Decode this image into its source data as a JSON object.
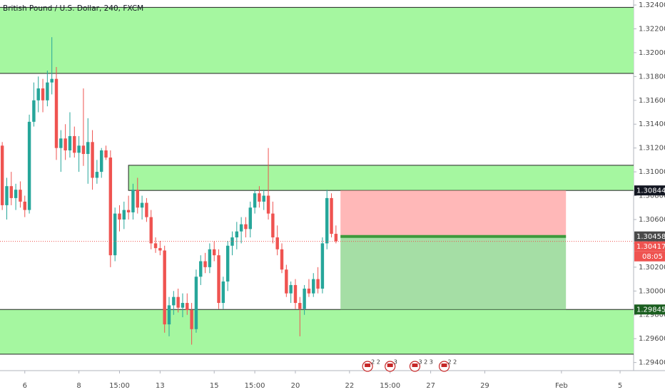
{
  "chart_data": {
    "type": "candlestick",
    "title": "British Pound / U.S. Dollar, 240, FXCM",
    "x": [
      0,
      1,
      2,
      3,
      4,
      5,
      6,
      7,
      8,
      9,
      10,
      11,
      12,
      13,
      14,
      15,
      16,
      17,
      18,
      19,
      20,
      21,
      22,
      23,
      24,
      25,
      26,
      27,
      28,
      29,
      30,
      31,
      32,
      33,
      34,
      35,
      36,
      37,
      38,
      39,
      40,
      41,
      42,
      43,
      44,
      45,
      46,
      47,
      48,
      49,
      50,
      51,
      52,
      53,
      54,
      55,
      56,
      57,
      58,
      59,
      60,
      61,
      62,
      63,
      64,
      65,
      66,
      67,
      68,
      69,
      70,
      71,
      72,
      73,
      74
    ],
    "open": [
      1.3122,
      1.3072,
      1.3088,
      1.3078,
      1.3085,
      1.3075,
      1.3068,
      1.3142,
      1.316,
      1.317,
      1.316,
      1.3175,
      1.3178,
      1.312,
      1.3128,
      1.3118,
      1.313,
      1.3116,
      1.3122,
      1.3115,
      1.3125,
      1.3095,
      1.31,
      1.3118,
      1.3112,
      1.303,
      1.3065,
      1.306,
      1.3068,
      1.3066,
      1.3085,
      1.307,
      1.3074,
      1.3062,
      1.304,
      1.3036,
      1.3034,
      1.2972,
      1.2988,
      1.2995,
      1.2986,
      1.299,
      1.2984,
      1.2968,
      1.3012,
      1.3025,
      1.302,
      1.3035,
      1.303,
      1.299,
      1.3008,
      1.3038,
      1.3045,
      1.305,
      1.3056,
      1.3052,
      1.307,
      1.3082,
      1.3075,
      1.308,
      1.3065,
      1.3045,
      1.3035,
      1.3018,
      1.2998,
      1.3005,
      1.299,
      1.2985,
      1.3002,
      1.2998,
      1.301,
      1.3002,
      1.304,
      1.3078,
      1.3048
    ],
    "high": [
      1.3125,
      1.3095,
      1.31,
      1.309,
      1.3092,
      1.308,
      1.3148,
      1.3175,
      1.318,
      1.3178,
      1.3185,
      1.3213,
      1.3188,
      1.3135,
      1.314,
      1.315,
      1.3138,
      1.313,
      1.317,
      1.3145,
      1.3135,
      1.311,
      1.312,
      1.3122,
      1.3118,
      1.307,
      1.3072,
      1.3075,
      1.308,
      1.309,
      1.3095,
      1.308,
      1.3078,
      1.3068,
      1.3045,
      1.3042,
      1.3038,
      1.2995,
      1.3,
      1.3002,
      1.2998,
      1.2998,
      1.299,
      1.3018,
      1.303,
      1.3032,
      1.304,
      1.3042,
      1.3035,
      1.3012,
      1.3042,
      1.305,
      1.3058,
      1.3062,
      1.3062,
      1.3075,
      1.3085,
      1.3088,
      1.3085,
      1.312,
      1.3075,
      1.3055,
      1.304,
      1.3022,
      1.3008,
      1.301,
      1.2995,
      1.3005,
      1.301,
      1.3015,
      1.302,
      1.3045,
      1.3085,
      1.3082,
      1.3055
    ],
    "low": [
      1.3068,
      1.306,
      1.3072,
      1.3068,
      1.307,
      1.3062,
      1.3065,
      1.3138,
      1.315,
      1.315,
      1.3155,
      1.3165,
      1.311,
      1.31,
      1.311,
      1.3112,
      1.3112,
      1.31,
      1.3105,
      1.309,
      1.3085,
      1.309,
      1.3095,
      1.311,
      1.302,
      1.3025,
      1.305,
      1.3052,
      1.306,
      1.306,
      1.3065,
      1.306,
      1.3058,
      1.3035,
      1.3032,
      1.303,
      1.2965,
      1.2962,
      1.298,
      1.2982,
      1.2978,
      1.298,
      1.2955,
      1.2965,
      1.3005,
      1.3015,
      1.3015,
      1.3025,
      1.2985,
      1.2985,
      1.3,
      1.303,
      1.3035,
      1.304,
      1.3045,
      1.3045,
      1.3065,
      1.307,
      1.3068,
      1.306,
      1.304,
      1.303,
      1.3015,
      1.2995,
      1.299,
      1.2985,
      1.2962,
      1.298,
      1.2995,
      1.2995,
      1.2998,
      1.2998,
      1.3035,
      1.3045,
      1.304
    ],
    "close": [
      1.3072,
      1.3088,
      1.3078,
      1.3085,
      1.3075,
      1.3068,
      1.3142,
      1.316,
      1.317,
      1.316,
      1.3175,
      1.3178,
      1.312,
      1.3128,
      1.3118,
      1.313,
      1.3116,
      1.3122,
      1.3115,
      1.3125,
      1.3095,
      1.31,
      1.3118,
      1.3112,
      1.303,
      1.3065,
      1.306,
      1.3068,
      1.3066,
      1.3085,
      1.307,
      1.3074,
      1.3062,
      1.304,
      1.3036,
      1.3034,
      1.2972,
      1.2988,
      1.2995,
      1.2986,
      1.299,
      1.2984,
      1.2968,
      1.3012,
      1.3025,
      1.302,
      1.3035,
      1.303,
      1.299,
      1.3008,
      1.3038,
      1.3045,
      1.305,
      1.3056,
      1.3052,
      1.307,
      1.3082,
      1.3075,
      1.308,
      1.3065,
      1.3045,
      1.3035,
      1.3018,
      1.2998,
      1.3005,
      1.299,
      1.2985,
      1.3002,
      1.2998,
      1.301,
      1.3002,
      1.304,
      1.3078,
      1.3048,
      1.30417
    ],
    "up_color": "#26a69a",
    "down_color": "#ef5350",
    "zone_color": "#a5f7a0",
    "xlim": [
      -0.5,
      140
    ],
    "ylim": [
      1.29332,
      1.32442
    ],
    "xticks": [
      {
        "value": 5,
        "label": "6"
      },
      {
        "value": 17,
        "label": "8"
      },
      {
        "value": 26,
        "label": "15:00"
      },
      {
        "value": 35,
        "label": "13"
      },
      {
        "value": 47,
        "label": "15"
      },
      {
        "value": 56,
        "label": "15:00"
      },
      {
        "value": 65,
        "label": "20"
      },
      {
        "value": 77,
        "label": "22"
      },
      {
        "value": 86,
        "label": "15:00"
      },
      {
        "value": 95,
        "label": "27"
      },
      {
        "value": 107,
        "label": "29"
      },
      {
        "value": 124,
        "label": "Feb"
      },
      {
        "value": 137,
        "label": "5"
      }
    ],
    "yticks": [
      {
        "value": 1.324,
        "label": "1.32400"
      },
      {
        "value": 1.322,
        "label": "1.32200"
      },
      {
        "value": 1.32,
        "label": "1.32000"
      },
      {
        "value": 1.318,
        "label": "1.31800"
      },
      {
        "value": 1.316,
        "label": "1.31600"
      },
      {
        "value": 1.314,
        "label": "1.31400"
      },
      {
        "value": 1.312,
        "label": "1.31200"
      },
      {
        "value": 1.31,
        "label": "1.31000"
      },
      {
        "value": 1.308,
        "label": "1.30800"
      },
      {
        "value": 1.306,
        "label": "1.30600"
      },
      {
        "value": 1.304,
        "label": "1.30400"
      },
      {
        "value": 1.302,
        "label": "1.30200"
      },
      {
        "value": 1.3,
        "label": "1.30000"
      },
      {
        "value": 1.298,
        "label": "1.29800"
      },
      {
        "value": 1.296,
        "label": "1.29600"
      },
      {
        "value": 1.294,
        "label": "1.29400"
      }
    ],
    "zones": [
      {
        "from": 1.31826,
        "to": 1.3238
      },
      {
        "from": 1.30844,
        "to": 1.31055,
        "start": 28
      },
      {
        "from": 1.2947,
        "to": 1.29845
      }
    ],
    "position": {
      "start": 75,
      "end": 125,
      "entry": 1.30458,
      "stop": 1.30844,
      "target": 1.29845
    },
    "price_labels": [
      {
        "value": 1.30844,
        "label": "1.30844",
        "color": "#131722"
      },
      {
        "value": 1.30458,
        "label": "1.30458",
        "color": "#4a4a4a"
      },
      {
        "value": 1.30417,
        "label": "1.30417",
        "color": "#ef5350"
      },
      {
        "value": 1.29845,
        "label": "1.29845",
        "color": "#1b5e20"
      }
    ],
    "countdown": "08:05",
    "events": [
      {
        "x": 81,
        "label": "2 2"
      },
      {
        "x": 86,
        "label": "3"
      },
      {
        "x": 91.5,
        "label": "3 2 3"
      },
      {
        "x": 98,
        "label": "2 2"
      }
    ]
  }
}
